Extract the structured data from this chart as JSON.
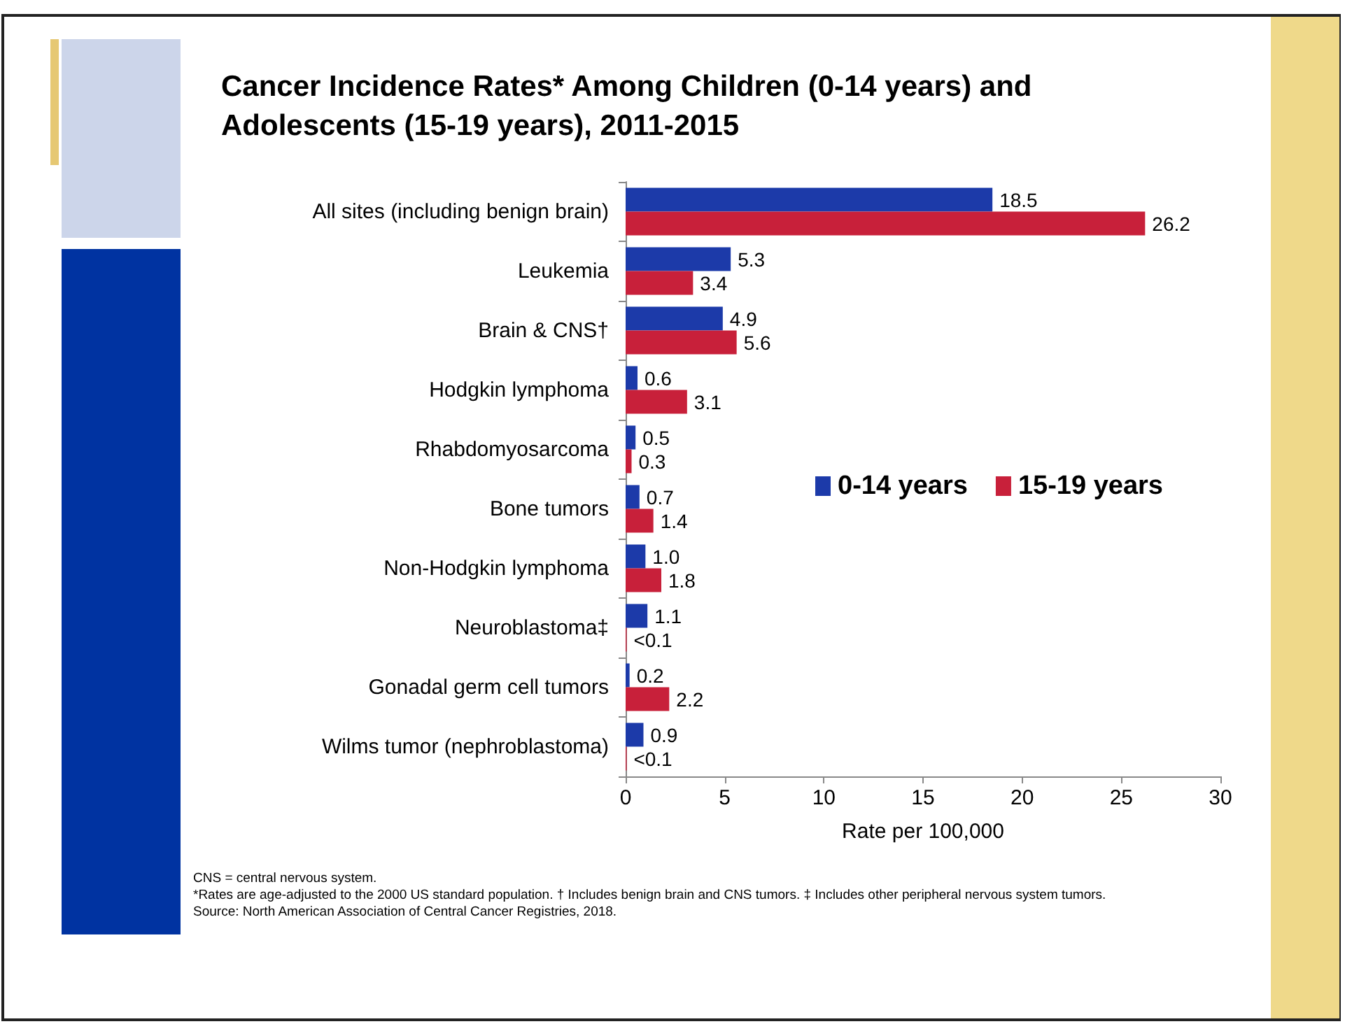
{
  "chart_data": {
    "type": "bar",
    "orientation": "horizontal",
    "title": "Cancer Incidence Rates* Among Children (0-14 years) and\nAdolescents (15-19 years), 2011-2015",
    "xlabel": "Rate per 100,000",
    "categories": [
      "All sites (including benign brain)",
      "Leukemia",
      "Brain & CNS†",
      "Hodgkin lymphoma",
      "Rhabdomyosarcoma",
      "Bone tumors",
      "Non-Hodgkin lymphoma",
      "Neuroblastoma‡",
      "Gonadal germ cell tumors",
      "Wilms tumor (nephroblastoma)"
    ],
    "series": [
      {
        "name": "0-14 years",
        "color": "#1c3aa9",
        "values": [
          18.5,
          5.3,
          4.9,
          0.6,
          0.5,
          0.7,
          1.0,
          1.1,
          0.2,
          0.9
        ],
        "value_labels": [
          "18.5",
          "5.3",
          "4.9",
          "0.6",
          "0.5",
          "0.7",
          "1.0",
          "1.1",
          "0.2",
          "0.9"
        ]
      },
      {
        "name": "15-19 years",
        "color": "#c8203a",
        "values": [
          26.2,
          3.4,
          5.6,
          3.1,
          0.3,
          1.4,
          1.8,
          0.05,
          2.2,
          0.05
        ],
        "value_labels": [
          "26.2",
          "3.4",
          "5.6",
          "3.1",
          "0.3",
          "1.4",
          "1.8",
          "<0.1",
          "2.2",
          "<0.1"
        ]
      }
    ],
    "xlim": [
      0,
      30
    ],
    "xticks": [
      0,
      5,
      10,
      15,
      20,
      25,
      30
    ],
    "grid": false,
    "legend": "right",
    "annotations": [
      "CNS = central nervous system.",
      "*Rates are age-adjusted to the 2000 US standard population. † Includes benign brain and CNS tumors. ‡ Includes other peripheral nervous system tumors.",
      "Source: North American Association of Central Cancer Registries, 2018."
    ]
  }
}
